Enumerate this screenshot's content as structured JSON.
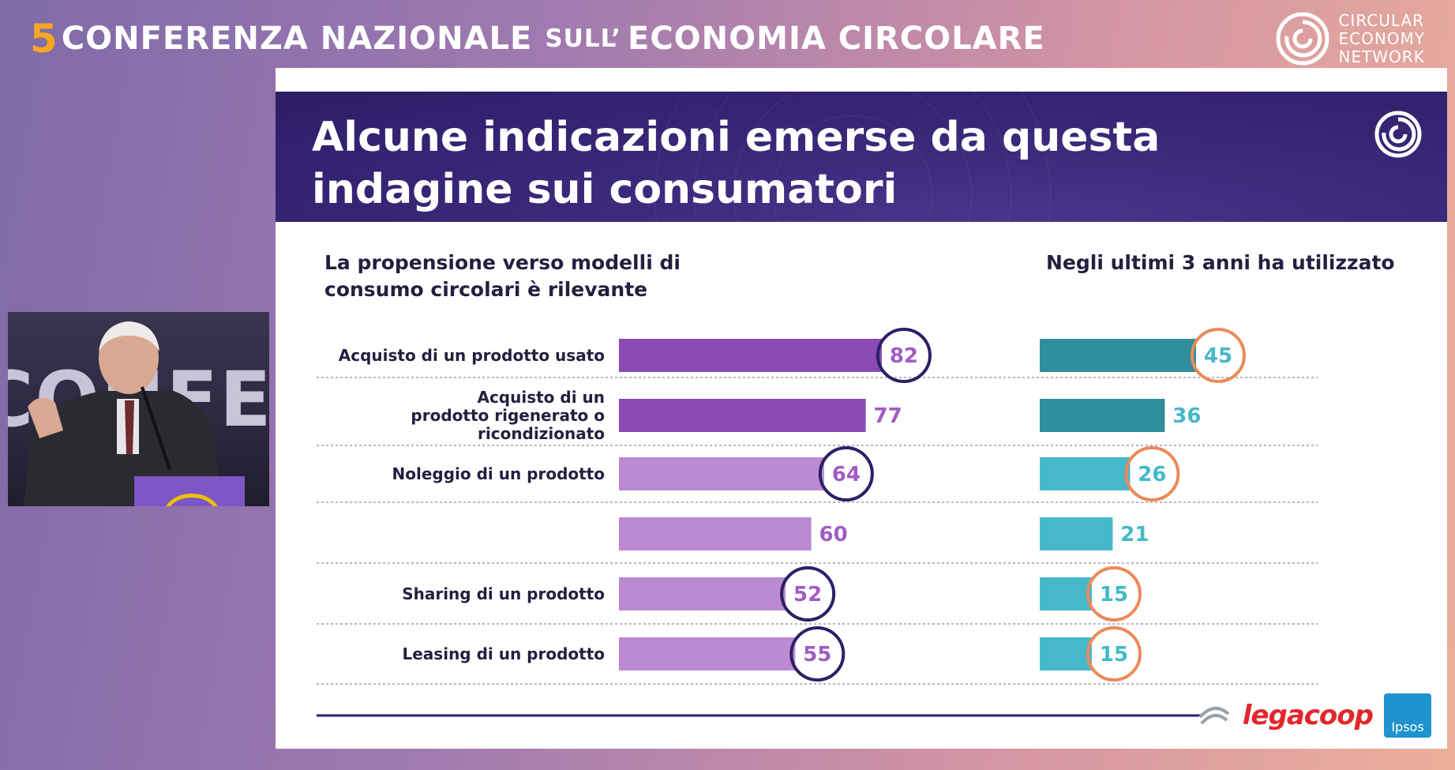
{
  "conference": {
    "number": "5",
    "title_part1": "CONFERENZA NAZIONALE",
    "title_small": "SULL’",
    "title_part2": "ECONOMIA CIRCOLARE"
  },
  "brand": {
    "line1": "CIRCULAR",
    "line2": "ECONOMY",
    "line3": "NETWORK"
  },
  "video": {
    "backdrop_text": "CONFERE"
  },
  "slide": {
    "title": "Alcune indicazioni emerse da questa\nindagine sui consumatori",
    "left_heading": "La propensione verso modelli di\nconsumo circolari è rilevante",
    "right_heading": "Negli ultimi 3 anni ha utilizzato"
  },
  "logos": {
    "legacoop": "legacoop",
    "ipsos": "Ipsos"
  },
  "colors": {
    "dark_purple": "#8a4ab3",
    "light_purple": "#bb8ad2",
    "dark_teal": "#2f8f9d",
    "light_teal": "#45b9c9",
    "circle_navy": "#2d1f66",
    "circle_orange": "#ec8a5b"
  },
  "chart_data": [
    {
      "type": "bar",
      "orientation": "horizontal",
      "title": "La propensione verso modelli di consumo circolari è rilevante",
      "categories": [
        "Acquisto di un prodotto usato",
        "Acquisto di un prodotto rigenerato o ricondizionato",
        "Noleggio di un prodotto",
        "",
        "Sharing di un prodotto",
        "Leasing di un prodotto"
      ],
      "values": [
        82,
        77,
        64,
        60,
        52,
        55
      ],
      "highlighted": [
        true,
        false,
        true,
        false,
        true,
        true
      ],
      "xlim": [
        0,
        100
      ]
    },
    {
      "type": "bar",
      "orientation": "horizontal",
      "title": "Negli ultimi 3 anni ha utilizzato",
      "categories": [
        "Acquisto di un prodotto usato",
        "Acquisto di un prodotto rigenerato o ricondizionato",
        "Noleggio di un prodotto",
        "",
        "Sharing di un prodotto",
        "Leasing di un prodotto"
      ],
      "values": [
        45,
        36,
        26,
        21,
        15,
        15
      ],
      "highlighted": [
        true,
        false,
        true,
        false,
        true,
        true
      ],
      "xlim": [
        0,
        100
      ]
    }
  ]
}
